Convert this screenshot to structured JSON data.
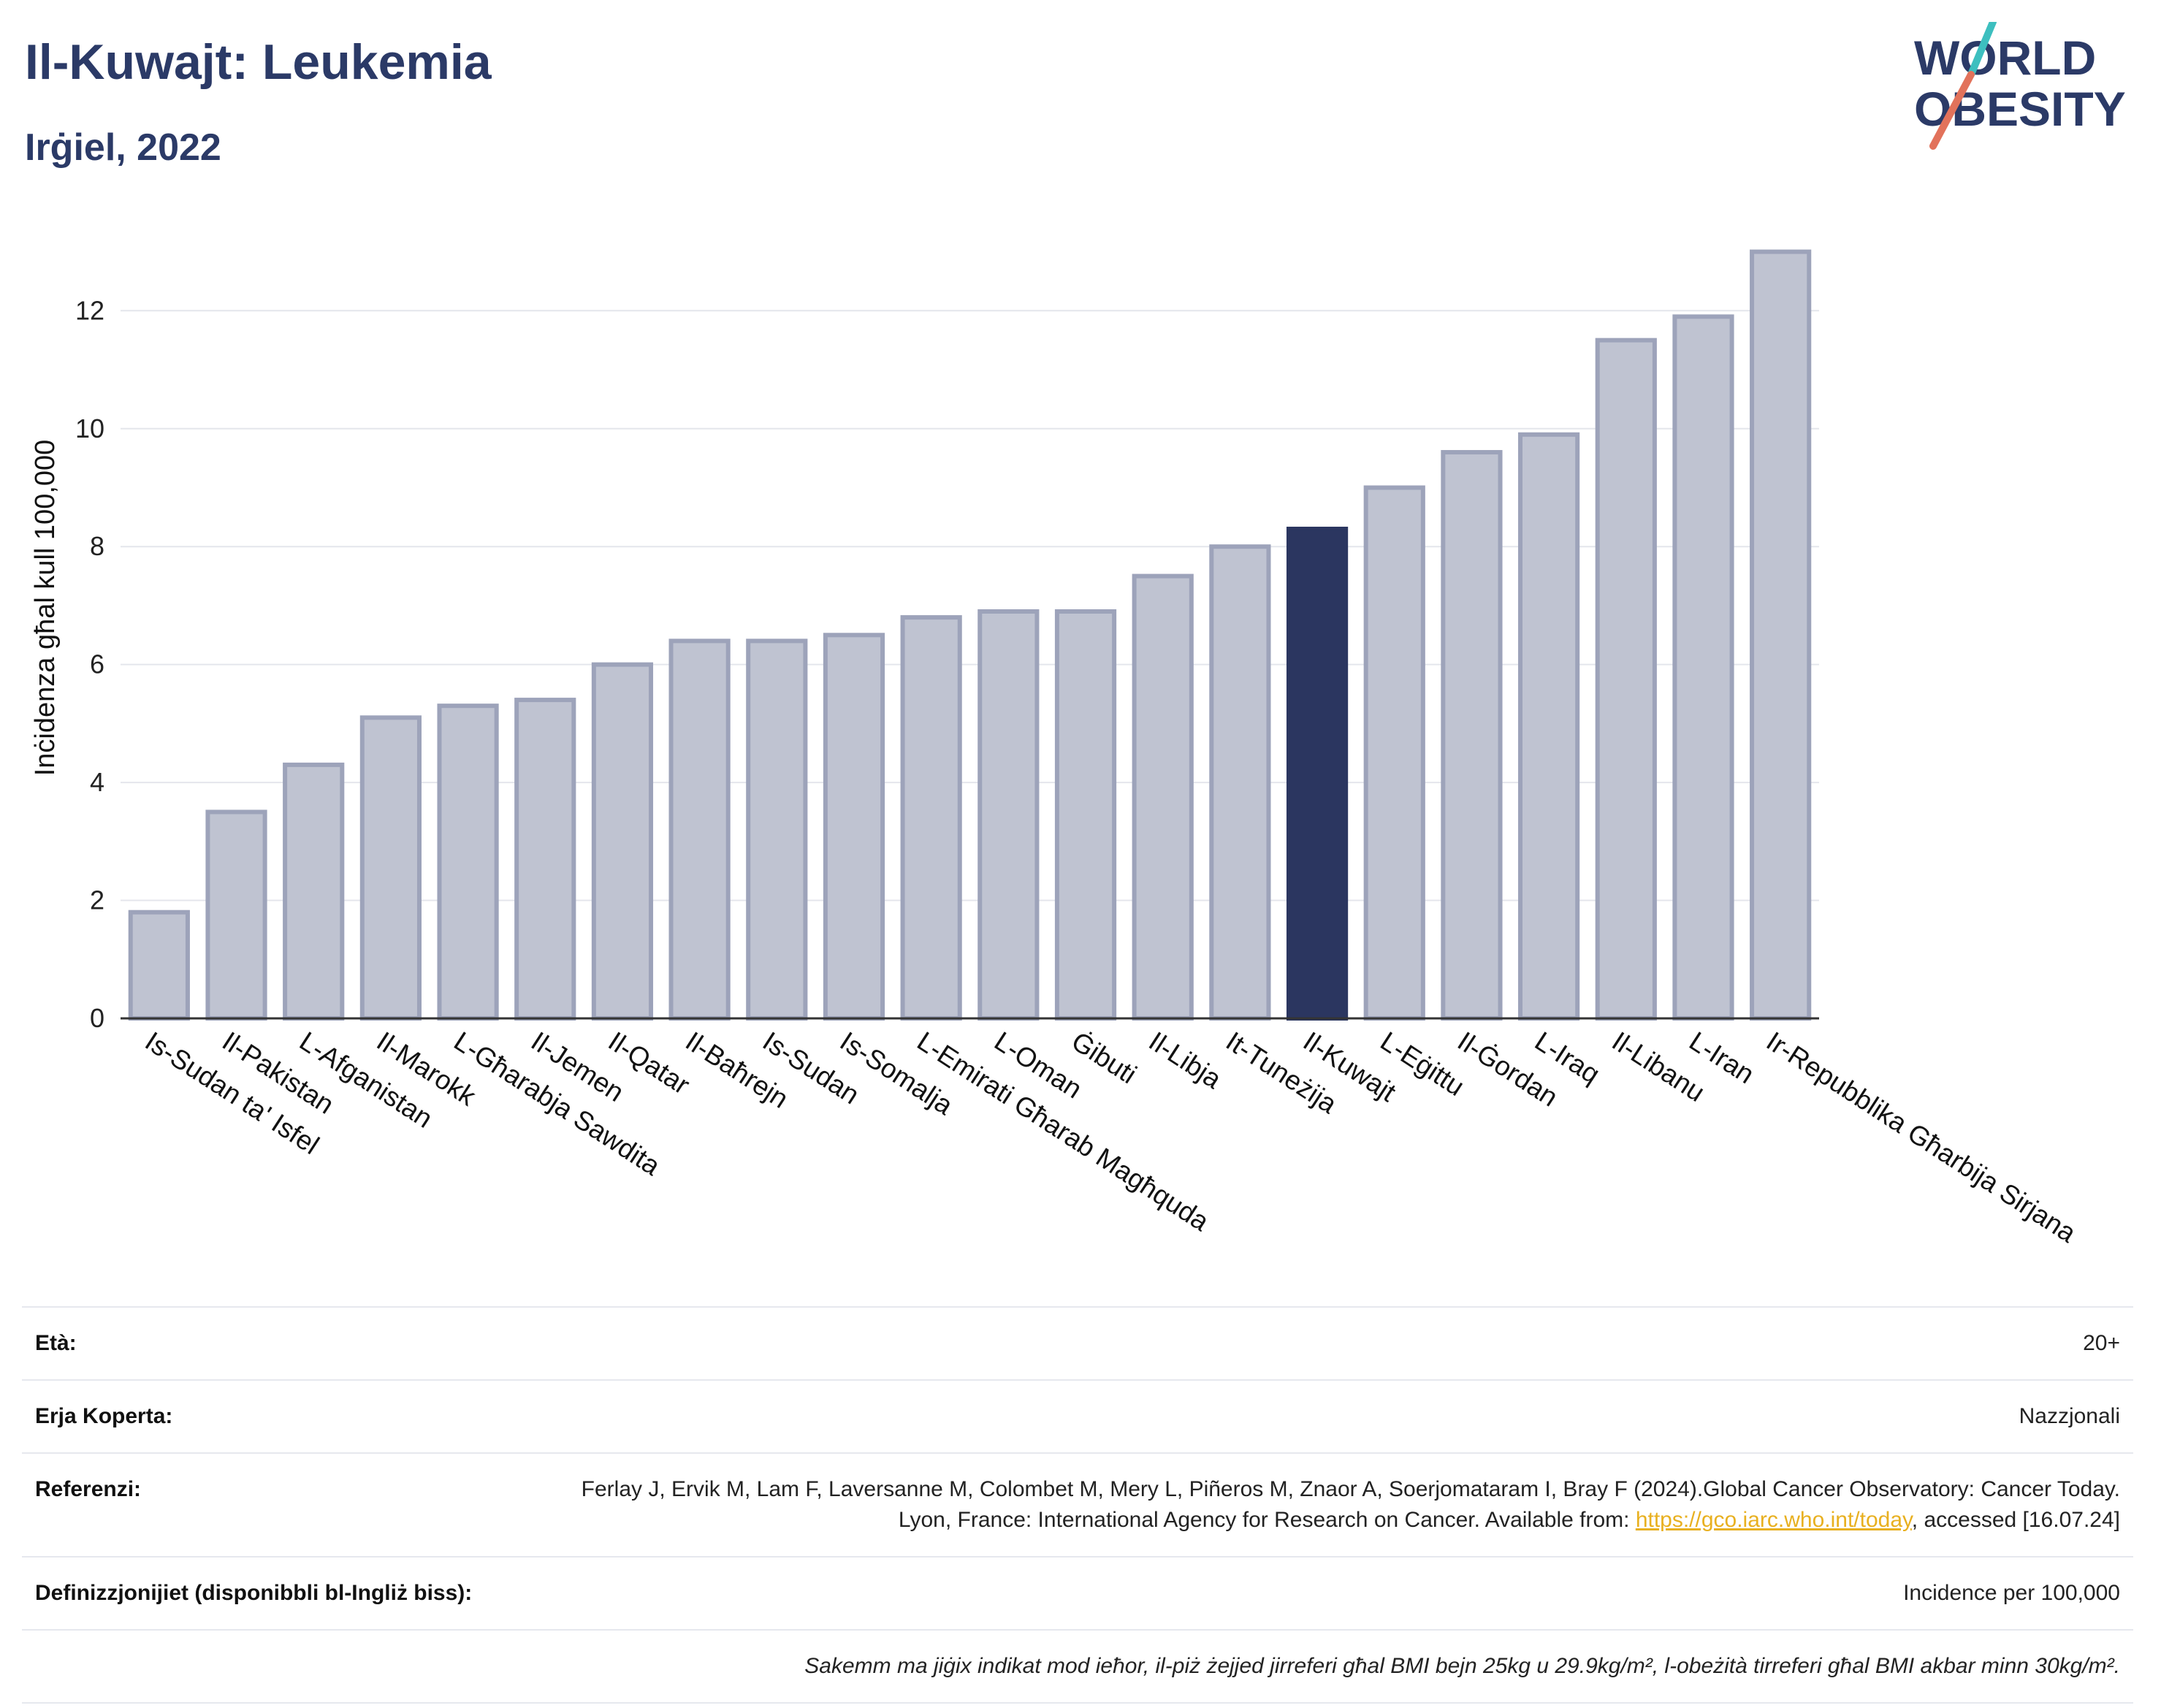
{
  "header": {
    "title": "Il-Kuwajt: Leukemia",
    "subtitle": "Irġiel, 2022",
    "logo_line1": "WORLD",
    "logo_line2": "OBESITY"
  },
  "chart_data": {
    "type": "bar",
    "ylabel": "Inċidenza għal kull 100,000",
    "xlabel": "",
    "ylim": [
      0,
      13.8
    ],
    "yticks": [
      0,
      2,
      4,
      6,
      8,
      10,
      12
    ],
    "grid": true,
    "highlight": "Il-Kuwajt",
    "colors": {
      "bar": "#bfc3d1",
      "bar_edge": "#9da3ba",
      "highlight": "#2b3660",
      "grid": "#e4e6ec",
      "axis": "#333333"
    },
    "categories": [
      "Is-Sudan ta' Isfel",
      "Il-Pakistan",
      "L-Afganistan",
      "Il-Marokk",
      "L-Għarabja Sawdita",
      "Il-Jemen",
      "Il-Qatar",
      "Il-Baħrejn",
      "Is-Sudan",
      "Is-Somalja",
      "L-Emirati Għarab Magħquda",
      "L-Oman",
      "Ġibuti",
      "Il-Libja",
      "It-Tuneżija",
      "Il-Kuwajt",
      "L-Eġittu",
      "Il-Ġordan",
      "L-Iraq",
      "Il-Libanu",
      "L-Iran",
      "Ir-Repubblika Għarbija Sirjana"
    ],
    "values": [
      1.8,
      3.5,
      4.3,
      5.1,
      5.3,
      5.4,
      6.0,
      6.4,
      6.4,
      6.5,
      6.8,
      6.9,
      6.9,
      7.5,
      8.0,
      8.3,
      9.0,
      9.6,
      9.9,
      11.5,
      11.9,
      13.0
    ]
  },
  "meta": {
    "age_label": "Età:",
    "age_value": "20+",
    "area_label": "Erja Koperta:",
    "area_value": "Nazzjonali",
    "ref_label": "Referenzi:",
    "ref_text1": "Ferlay J, Ervik M, Lam F, Laversanne M, Colombet M, Mery L, Piñeros M, Znaor A, Soerjomataram I, Bray F (2024).Global Cancer Observatory: Cancer Today. Lyon, France: International Agency for Research on Cancer. Available from: ",
    "ref_link": "https://gco.iarc.who.int/today",
    "ref_text2": ", accessed [16.07.24]",
    "def_label": "Definizzjonijiet (disponibbli bl-Ingliż biss):",
    "def_value": "Incidence per 100,000",
    "note": "Sakemm ma jiġix indikat mod ieħor, il-piż żejjed jirreferi għal BMI bejn 25kg u 29.9kg/m², l-obeżità tirreferi għal BMI akbar minn 30kg/m²."
  }
}
